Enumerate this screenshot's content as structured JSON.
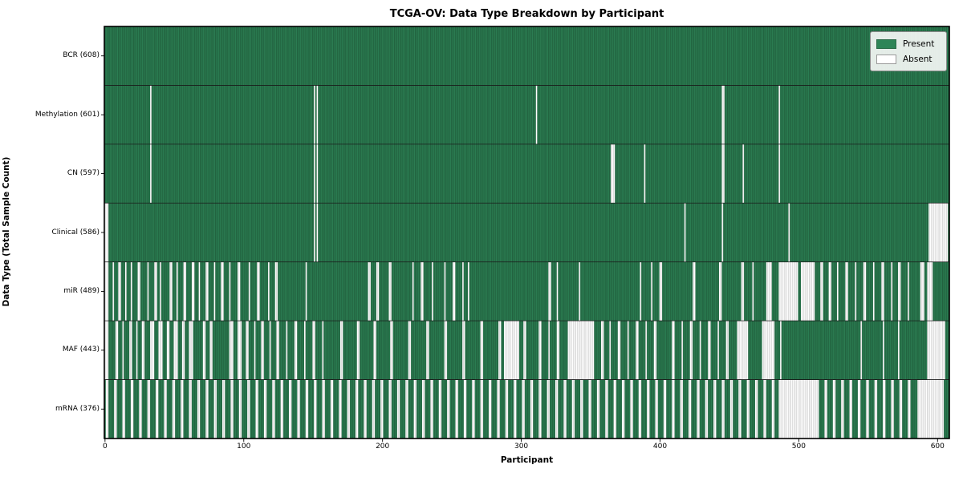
{
  "chart_data": {
    "type": "heatmap",
    "title": "TCGA-OV: Data Type Breakdown by Participant",
    "xlabel": "Participant",
    "ylabel": "Data Type (Total Sample Count)",
    "participants_total": 608,
    "x_axis_range": [
      0,
      609
    ],
    "x_ticks": [
      0,
      100,
      200,
      300,
      400,
      500,
      600
    ],
    "grid": "row-separators",
    "legend_position": "upper-right",
    "legend": [
      {
        "label": "Present",
        "color": "#2e8557"
      },
      {
        "label": "Absent",
        "color": "#ffffff"
      }
    ],
    "colors": {
      "present": "#2e8557",
      "present_edge": "#1a4f31",
      "absent": "#ffffff",
      "absent_edge": "#b5b5b5",
      "separator": "#1a1a1a",
      "border": "#000000"
    },
    "rows": [
      {
        "label": "BCR (608)",
        "name": "BCR",
        "present_count": 608,
        "absent_count": 0,
        "absent_ranges": [],
        "absent_periodic": []
      },
      {
        "label": "Methylation (601)",
        "name": "Methylation",
        "present_count": 601,
        "absent_count": 7,
        "absent_ranges": [
          [
            33,
            33
          ],
          [
            151,
            151
          ],
          [
            153,
            153
          ],
          [
            311,
            311
          ],
          [
            445,
            446
          ],
          [
            486,
            486
          ]
        ],
        "absent_periodic": []
      },
      {
        "label": "CN (597)",
        "name": "CN",
        "present_count": 597,
        "absent_count": 11,
        "absent_ranges": [
          [
            33,
            33
          ],
          [
            151,
            151
          ],
          [
            153,
            153
          ],
          [
            365,
            367
          ],
          [
            389,
            389
          ],
          [
            445,
            446
          ],
          [
            460,
            460
          ],
          [
            486,
            486
          ]
        ],
        "absent_periodic": []
      },
      {
        "label": "Clinical (586)",
        "name": "Clinical",
        "present_count": 586,
        "absent_count": 22,
        "absent_ranges": [
          [
            0,
            2
          ],
          [
            151,
            151
          ],
          [
            153,
            153
          ],
          [
            418,
            418
          ],
          [
            445,
            445
          ],
          [
            493,
            493
          ],
          [
            594,
            607
          ]
        ],
        "absent_periodic": []
      },
      {
        "label": "miR (489)",
        "name": "miR",
        "present_count": 489,
        "absent_count": 119,
        "absent_ranges": [
          [
            0,
            2
          ],
          [
            6,
            6
          ],
          [
            10,
            11
          ],
          [
            15,
            15
          ],
          [
            19,
            19
          ],
          [
            24,
            25
          ],
          [
            31,
            31
          ],
          [
            36,
            37
          ],
          [
            40,
            40
          ],
          [
            47,
            48
          ],
          [
            52,
            52
          ],
          [
            57,
            58
          ],
          [
            63,
            64
          ],
          [
            68,
            68
          ],
          [
            73,
            74
          ],
          [
            79,
            79
          ],
          [
            84,
            85
          ],
          [
            90,
            90
          ],
          [
            96,
            97
          ],
          [
            104,
            104
          ],
          [
            110,
            111
          ],
          [
            118,
            118
          ],
          [
            123,
            124
          ],
          [
            145,
            145
          ],
          [
            190,
            191
          ],
          [
            196,
            197
          ],
          [
            205,
            206
          ],
          [
            222,
            222
          ],
          [
            228,
            229
          ],
          [
            236,
            236
          ],
          [
            245,
            245
          ],
          [
            251,
            252
          ],
          [
            258,
            258
          ],
          [
            262,
            262
          ],
          [
            320,
            321
          ],
          [
            326,
            326
          ],
          [
            342,
            342
          ],
          [
            386,
            386
          ],
          [
            394,
            394
          ],
          [
            400,
            401
          ],
          [
            424,
            425
          ],
          [
            443,
            444
          ],
          [
            459,
            460
          ],
          [
            467,
            467
          ],
          [
            477,
            480
          ],
          [
            486,
            499
          ],
          [
            502,
            511
          ],
          [
            516,
            517
          ],
          [
            522,
            523
          ],
          [
            528,
            528
          ],
          [
            534,
            535
          ],
          [
            541,
            541
          ],
          [
            547,
            548
          ],
          [
            554,
            554
          ],
          [
            560,
            561
          ],
          [
            567,
            567
          ],
          [
            572,
            573
          ],
          [
            579,
            579
          ],
          [
            588,
            590
          ],
          [
            593,
            596
          ]
        ],
        "absent_periodic": []
      },
      {
        "label": "MAF (443)",
        "name": "MAF",
        "present_count": 443,
        "absent_count": 165,
        "absent_ranges": [
          [
            0,
            2
          ],
          [
            8,
            9
          ],
          [
            13,
            13
          ],
          [
            18,
            19
          ],
          [
            23,
            23
          ],
          [
            27,
            28
          ],
          [
            33,
            35
          ],
          [
            39,
            41
          ],
          [
            45,
            46
          ],
          [
            50,
            52
          ],
          [
            56,
            57
          ],
          [
            61,
            63
          ],
          [
            71,
            72
          ],
          [
            76,
            77
          ],
          [
            90,
            92
          ],
          [
            96,
            98
          ],
          [
            102,
            103
          ],
          [
            108,
            108
          ],
          [
            113,
            114
          ],
          [
            119,
            119
          ],
          [
            124,
            125
          ],
          [
            131,
            131
          ],
          [
            137,
            138
          ],
          [
            144,
            144
          ],
          [
            150,
            151
          ],
          [
            157,
            157
          ],
          [
            170,
            171
          ],
          [
            182,
            183
          ],
          [
            194,
            195
          ],
          [
            206,
            207
          ],
          [
            219,
            220
          ],
          [
            232,
            233
          ],
          [
            245,
            246
          ],
          [
            258,
            259
          ],
          [
            271,
            272
          ],
          [
            284,
            285
          ],
          [
            288,
            298
          ],
          [
            302,
            303
          ],
          [
            313,
            314
          ],
          [
            320,
            320
          ],
          [
            326,
            327
          ],
          [
            334,
            352
          ],
          [
            358,
            359
          ],
          [
            364,
            364
          ],
          [
            370,
            371
          ],
          [
            377,
            377
          ],
          [
            383,
            384
          ],
          [
            390,
            390
          ],
          [
            396,
            397
          ],
          [
            409,
            410
          ],
          [
            416,
            416
          ],
          [
            422,
            423
          ],
          [
            429,
            429
          ],
          [
            435,
            436
          ],
          [
            442,
            442
          ],
          [
            448,
            449
          ],
          [
            456,
            463
          ],
          [
            474,
            482
          ],
          [
            487,
            487
          ],
          [
            545,
            545
          ],
          [
            561,
            561
          ],
          [
            572,
            572
          ],
          [
            593,
            605
          ]
        ],
        "absent_periodic": []
      },
      {
        "label": "mRNA (376)",
        "name": "mRNA",
        "present_count": 376,
        "absent_count": 232,
        "absent_ranges": [
          [
            486,
            512
          ],
          [
            586,
            604
          ]
        ],
        "absent_periodic": [
          {
            "start": 1,
            "end": 482,
            "step": 6,
            "run": 2
          },
          {
            "start": 513,
            "end": 580,
            "step": 6,
            "run": 2
          }
        ]
      }
    ]
  }
}
